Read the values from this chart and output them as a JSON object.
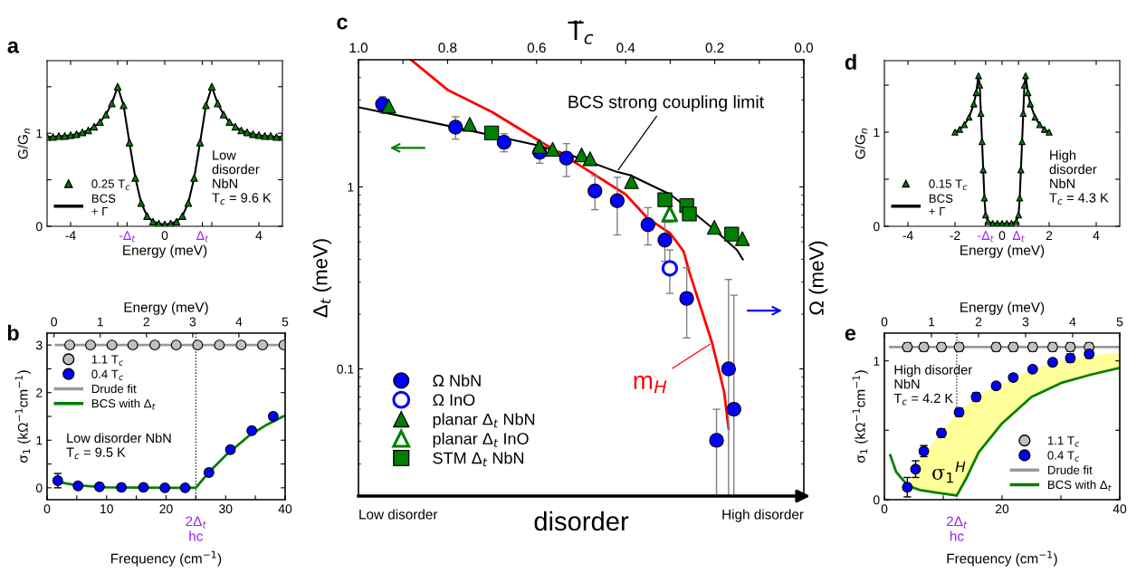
{
  "chart_data": [
    {
      "type": "line",
      "annotations": [
        "a",
        "Low\ndisorder\nNbN\nT$_{c}$ = 9.6 K"
      ],
      "xlabel": "Energy (meV)",
      "ylabel": "G/G$_{n}$",
      "xlim": [
        -5,
        5
      ],
      "ylim": [
        0,
        1.78
      ],
      "xticks": [
        -4,
        {
          "value": -2,
          "label": null
        },
        {
          "value": -1.6,
          "label": "-Δ$_{t}$"
        },
        0,
        {
          "value": 1.6,
          "label": "Δ$_{t}$"
        },
        {
          "value": 2,
          "label": null
        },
        4
      ],
      "yticks": [
        0,
        {
          "value": 0.5,
          "label": null
        },
        1,
        {
          "value": 1.5,
          "label": null
        }
      ],
      "x": [
        -5,
        -4.75,
        -4.5,
        -4.25,
        -4,
        -3.75,
        -3.5,
        -3.25,
        -3,
        -2.75,
        -2.5,
        -2.25,
        -2,
        -1.75,
        -1.5,
        -1.25,
        -1,
        -0.75,
        -0.5,
        -0.25,
        0,
        0.25,
        0.5,
        0.75,
        1,
        1.25,
        1.5,
        1.75,
        2,
        2.25,
        2.5,
        2.75,
        3,
        3.25,
        3.5,
        3.75,
        4,
        4.25,
        4.5,
        4.75,
        5
      ],
      "series": [
        {
          "name": "0.25 T$_{c}$",
          "type": "scatter",
          "marker": "triangle",
          "color": "#008000",
          "values": [
            0.96,
            0.96,
            0.97,
            0.97,
            0.98,
            0.99,
            1.01,
            1.03,
            1.07,
            1.12,
            1.2,
            1.32,
            1.5,
            1.3,
            0.9,
            0.52,
            0.25,
            0.11,
            0.05,
            0.03,
            0.02,
            0.03,
            0.05,
            0.11,
            0.25,
            0.52,
            0.9,
            1.3,
            1.5,
            1.32,
            1.2,
            1.12,
            1.07,
            1.03,
            1.01,
            0.99,
            0.98,
            0.97,
            0.97,
            0.96,
            0.96
          ]
        },
        {
          "name": "BCS\n+ Γ",
          "type": "line",
          "color": "#000000",
          "values": [
            0.96,
            0.96,
            0.97,
            0.97,
            0.98,
            0.99,
            1.01,
            1.03,
            1.07,
            1.12,
            1.2,
            1.32,
            1.5,
            1.3,
            0.9,
            0.52,
            0.25,
            0.11,
            0.05,
            0.03,
            0.02,
            0.03,
            0.05,
            0.11,
            0.25,
            0.52,
            0.9,
            1.3,
            1.5,
            1.32,
            1.2,
            1.12,
            1.07,
            1.03,
            1.01,
            0.99,
            0.98,
            0.97,
            0.97,
            0.96,
            0.96
          ]
        }
      ],
      "legend": "lower left"
    },
    {
      "type": "scatter",
      "annotations": [
        "b",
        "Low disorder NbN\nT$_{c}$ = 9.5 K",
        {
          "text": "2Δ$_{t}$\nhc",
          "x": 25,
          "y": -0.25
        }
      ],
      "xlabel": "Frequency (cm$^{−1}$)",
      "ylabel": "σ$_{1}$ (kΩ$^{−1}$cm$^{−1}$)",
      "x2label": "Energy (meV)",
      "xlim": [
        0,
        40
      ],
      "ylim": [
        -0.25,
        3.25
      ],
      "x2lim": [
        -0.15,
        5
      ],
      "xticks": [
        0,
        {
          "value": 5,
          "label": null
        },
        10,
        {
          "value": 15,
          "label": null
        },
        20,
        {
          "value": 25,
          "label": null
        },
        30,
        {
          "value": 35,
          "label": null
        },
        40
      ],
      "yticks": [
        0,
        {
          "value": 0.5,
          "label": null
        },
        1,
        {
          "value": 1.5,
          "label": null
        },
        2,
        {
          "value": 2.5,
          "label": null
        },
        3
      ],
      "x2ticks": [
        0,
        1,
        2,
        3,
        4,
        5
      ],
      "ref_lines": [
        {
          "axis": "x",
          "value": 25,
          "line_style": "dotted",
          "color": "#000000"
        }
      ],
      "series": [
        {
          "name": "1.1 T$_{c}$",
          "marker": "circle",
          "color": "#c0c0c0",
          "x": [
            3.8,
            7.3,
            10.9,
            14.4,
            18.1,
            21.7,
            25.3,
            28.95,
            32.6,
            36.2,
            39.8
          ],
          "values": [
            3,
            3,
            3,
            3,
            3,
            3,
            3,
            3,
            3,
            3,
            3
          ]
        },
        {
          "name": "0.4 T$_{c}$",
          "marker": "circle",
          "color": "#0000ff",
          "x": [
            1.8,
            5.2,
            8.8,
            12.5,
            16.2,
            19.8,
            23.2,
            27.2,
            30.8,
            34.4,
            38
          ],
          "values": [
            0.15,
            0.04,
            0.02,
            0.01,
            0.01,
            0,
            0,
            0.32,
            0.8,
            1.2,
            1.5
          ],
          "errors": [
            0.15,
            null,
            null,
            null,
            null,
            null,
            null,
            null,
            null,
            null,
            null
          ]
        },
        {
          "name": "Drude fit",
          "type": "line",
          "color": "#999999",
          "x": [
            1.5,
            40
          ],
          "values": [
            3,
            3
          ]
        },
        {
          "name": "BCS with Δ$_{t}$",
          "type": "line",
          "color": "#008000",
          "x": [
            2,
            5,
            10,
            20,
            25,
            27,
            30,
            34,
            37,
            40
          ],
          "values": [
            0.12,
            0.05,
            0.01,
            0,
            0,
            0.3,
            0.68,
            1.1,
            1.33,
            1.52
          ]
        }
      ],
      "legend": "upper left"
    },
    {
      "type": "scatter",
      "annotations": [
        "c",
        "Low disorder",
        "High disorder",
        {
          "text": "BCS strong coupling limit",
          "x": 0.42,
          "y": 1.21
        },
        {
          "text": "m$_{H}$",
          "x": 0.206,
          "y": 0.139
        },
        "disorder"
      ],
      "xlabel": "T̃$_{c}$",
      "ylabel": "Δ$_{t}$ (meV)",
      "y2label": "Ω (meV)",
      "log": true,
      "ylim": [
        0.02,
        5
      ],
      "yticks": [
        0.1,
        1
      ],
      "xlim": [
        1.0,
        0.0
      ],
      "xticks": [
        {
          "value": 1.0,
          "label": "1.0"
        },
        {
          "value": 0.9,
          "label": null
        },
        {
          "value": 0.8,
          "label": "0.8"
        },
        {
          "value": 0.7,
          "label": null
        },
        {
          "value": 0.6,
          "label": "0.6"
        },
        {
          "value": 0.5,
          "label": null
        },
        {
          "value": 0.4,
          "label": "0.4"
        },
        {
          "value": 0.3,
          "label": null
        },
        {
          "value": 0.2,
          "label": "0.2"
        },
        {
          "value": 0.1,
          "label": null
        },
        {
          "value": 0.0,
          "label": "0.0"
        }
      ],
      "series": [
        {
          "type": "line",
          "color": "#000000",
          "x": [
            1.0,
            0.8,
            0.6,
            0.5,
            0.42,
            0.39,
            0.3,
            0.25,
            0.2,
            0.15,
            0.137
          ],
          "values": [
            2.74,
            2.17,
            1.7,
            1.43,
            1.21,
            1.16,
            0.91,
            0.73,
            0.58,
            0.45,
            0.4
          ]
        },
        {
          "type": "line",
          "color": "#ff0000",
          "x": [
            0.882,
            0.8,
            0.7,
            0.6,
            0.5,
            0.4,
            0.35,
            0.3,
            0.27,
            0.257,
            0.206,
            0.179,
            0.169
          ],
          "values": [
            5,
            3.42,
            2.58,
            1.83,
            1.3,
            0.91,
            0.67,
            0.556,
            0.443,
            0.34,
            0.139,
            0.075,
            0.047
          ]
        },
        {
          "name": "Ω NbN",
          "marker": "circle",
          "color": "#0000ff",
          "x": [
            0.946,
            0.782,
            0.673,
            0.593,
            0.533,
            0.469,
            0.419,
            0.35,
            0.312,
            0.263,
            0.196,
            0.169,
            0.157
          ],
          "values": [
            2.85,
            2.13,
            1.76,
            1.55,
            1.44,
            0.95,
            0.84,
            0.62,
            0.51,
            0.244,
            0.0405,
            0.1,
            0.06
          ],
          "errors": [
            [
              2.55,
              3.14
            ],
            [
              1.83,
              2.43
            ],
            [
              1.56,
              1.96
            ],
            [
              1.35,
              1.76
            ],
            [
              1.14,
              1.73
            ],
            [
              0.75,
              1.15
            ],
            [
              0.545,
              1.13
            ],
            [
              0.48,
              0.77
            ],
            [
              0.39,
              0.64
            ],
            [
              0.148,
              0.36
            ],
            [
              0.02,
              0.06
            ],
            [
              0.02,
              0.31
            ],
            [
              0.02,
              0.254
            ]
          ]
        },
        {
          "name": "Ω InO",
          "marker": "circle_open",
          "color": "#0000ff",
          "x": [
            0.301
          ],
          "values": [
            0.357
          ],
          "errors": [
            [
              0.26,
              0.45
            ]
          ]
        },
        {
          "name": "planar Δ$_{t}$ NbN",
          "marker": "triangle",
          "color": "#008000",
          "x": [
            0.932,
            0.75,
            0.594,
            0.564,
            0.499,
            0.48,
            0.387,
            0.201,
            0.138
          ],
          "values": [
            2.78,
            2.21,
            1.67,
            1.61,
            1.5,
            1.43,
            1.07,
            0.6,
            0.52
          ]
        },
        {
          "name": "planar Δ$_{t}$ InO",
          "marker": "triangle_open",
          "color": "#008000",
          "x": [
            0.301
          ],
          "values": [
            0.71
          ],
          "errors": [
            [
              0.64,
              0.78
            ]
          ]
        },
        {
          "name": "STM Δ$_{t}$ NbN",
          "marker": "square",
          "color": "#008000",
          "x": [
            0.701,
            0.312,
            0.263,
            0.257,
            0.162
          ],
          "values": [
            1.98,
            0.85,
            0.79,
            0.71,
            0.55
          ]
        }
      ],
      "legend": "lower left"
    },
    {
      "type": "line",
      "annotations": [
        "d",
        "High\ndisorder\nNbN\nT$_{c}$ = 4.3 K"
      ],
      "xlabel": "Energy (meV)",
      "ylabel": "G/G$_{n}$",
      "xlim": [
        -5,
        5
      ],
      "ylim": [
        0,
        1.76
      ],
      "xticks": [
        -4,
        -2,
        {
          "value": -0.7,
          "label": "-Δ$_{t}$"
        },
        0,
        {
          "value": 0.7,
          "label": "Δ$_{t}$"
        },
        2,
        4
      ],
      "yticks": [
        0,
        {
          "value": 0.5,
          "label": null
        },
        1,
        {
          "value": 1.5,
          "label": null
        }
      ],
      "x": [
        -2,
        -1.8,
        -1.6,
        -1.4,
        -1.2,
        -1.1,
        -1.0,
        -0.95,
        -0.9,
        -0.85,
        -0.8,
        -0.75,
        -0.7,
        -0.6,
        -0.4,
        -0.2,
        0,
        0.2,
        0.4,
        0.6,
        0.7,
        0.75,
        0.8,
        0.85,
        0.9,
        0.95,
        1.0,
        1.1,
        1.2,
        1.4,
        1.6,
        1.8,
        2
      ],
      "series": [
        {
          "name": "0.15 T$_{c}$",
          "type": "scatter",
          "marker": "triangle",
          "color": "#008000",
          "values": [
            1.0,
            1.03,
            1.08,
            1.16,
            1.3,
            1.42,
            1.6,
            1.5,
            1.2,
            0.9,
            0.6,
            0.3,
            0.12,
            0.05,
            0.03,
            0.03,
            0.03,
            0.03,
            0.03,
            0.05,
            0.12,
            0.3,
            0.6,
            0.9,
            1.2,
            1.5,
            1.6,
            1.42,
            1.3,
            1.16,
            1.08,
            1.03,
            1.0
          ]
        },
        {
          "name": "BCS\n+ Γ",
          "type": "line",
          "color": "#000000",
          "values": [
            1.0,
            1.03,
            1.08,
            1.16,
            1.3,
            1.42,
            1.6,
            1.5,
            1.2,
            0.9,
            0.6,
            0.3,
            0.12,
            0.05,
            0.03,
            0.03,
            0.03,
            0.03,
            0.03,
            0.05,
            0.12,
            0.3,
            0.6,
            0.9,
            1.2,
            1.5,
            1.6,
            1.42,
            1.3,
            1.16,
            1.08,
            1.03,
            1.0
          ]
        }
      ],
      "legend": "lower left"
    },
    {
      "type": "scatter",
      "annotations": [
        "e",
        "High disorder\nNbN\nT$_{c}$ = 4.2 K",
        "σ$_{1}$$^{H}$",
        {
          "text": "2Δ$_{t}$\nhc",
          "x": 12.3,
          "y": 0
        }
      ],
      "xlabel": "Frequency (cm$^{−1}$)",
      "ylabel": "σ$_{1}$ (kΩ$^{−1}$cm$^{−1}$)",
      "x2label": "Energy (meV)",
      "xlim": [
        0,
        40
      ],
      "ylim": [
        0,
        1.2
      ],
      "x2lim": [
        0,
        5
      ],
      "xticks": [
        0,
        {
          "value": 10,
          "label": null
        },
        20,
        {
          "value": 30,
          "label": null
        },
        40
      ],
      "yticks": [
        0,
        {
          "value": 0.5,
          "label": null
        },
        1
      ],
      "x2ticks": [
        0,
        1,
        2,
        3,
        4,
        5
      ],
      "ref_lines": [
        {
          "axis": "x",
          "value": 12.3,
          "line_style": "dotted",
          "color": "#000000"
        }
      ],
      "series": [
        {
          "name": "1.1 T$_{c}$",
          "marker": "circle",
          "color": "#c0c0c0",
          "x": [
            3.9,
            6.7,
            9.7,
            12.7,
            19,
            21.9,
            25.2,
            28.6,
            31.6,
            34.8
          ],
          "values": [
            1.1,
            1.1,
            1.1,
            1.1,
            1.1,
            1.1,
            1.1,
            1.1,
            1.1,
            1.1
          ],
          "errors": [
            0.03,
            0.03,
            0.03,
            0.03,
            0.03,
            0.03,
            0.03,
            0.03,
            0.03,
            0.03
          ]
        },
        {
          "name": "0.4 T$_{c}$",
          "marker": "circle",
          "color": "#0000ff",
          "x": [
            3.9,
            5.3,
            6.7,
            9.7,
            12.7,
            15.6,
            19,
            21.9,
            25.2,
            28.6,
            31.6,
            34.8
          ],
          "values": [
            0.09,
            0.22,
            0.35,
            0.48,
            0.63,
            0.74,
            0.82,
            0.88,
            0.94,
            0.99,
            1.02,
            1.05
          ],
          "errors": [
            0.07,
            0.06,
            0.04,
            0.03,
            0.03,
            0.03,
            null,
            null,
            null,
            null,
            0.03,
            0.03
          ]
        },
        {
          "name": "Drude fit",
          "type": "line",
          "color": "#999999",
          "x": [
            1,
            40
          ],
          "values": [
            1.1,
            1.1
          ]
        },
        {
          "name": "BCS with Δ$_{t}$",
          "type": "line",
          "color": "#008000",
          "x": [
            1,
            2,
            4,
            6,
            9,
            12.3,
            14,
            16,
            20,
            25,
            30,
            35,
            40
          ],
          "values": [
            0.32,
            0.2,
            0.1,
            0.07,
            0.05,
            0.03,
            0.16,
            0.34,
            0.55,
            0.74,
            0.84,
            0.9,
            0.95
          ],
          "lower": [
            null,
            null,
            0.1,
            0.07,
            0.05,
            0.03,
            0.16,
            0.34,
            0.55,
            0.74,
            0.84,
            0.9,
            0.95
          ],
          "upper": [
            null,
            null,
            0.1,
            0.29,
            0.45,
            0.62,
            0.68,
            0.76,
            0.83,
            0.94,
            1.0,
            1.04,
            1.06
          ]
        }
      ],
      "legend": "lower right"
    }
  ]
}
